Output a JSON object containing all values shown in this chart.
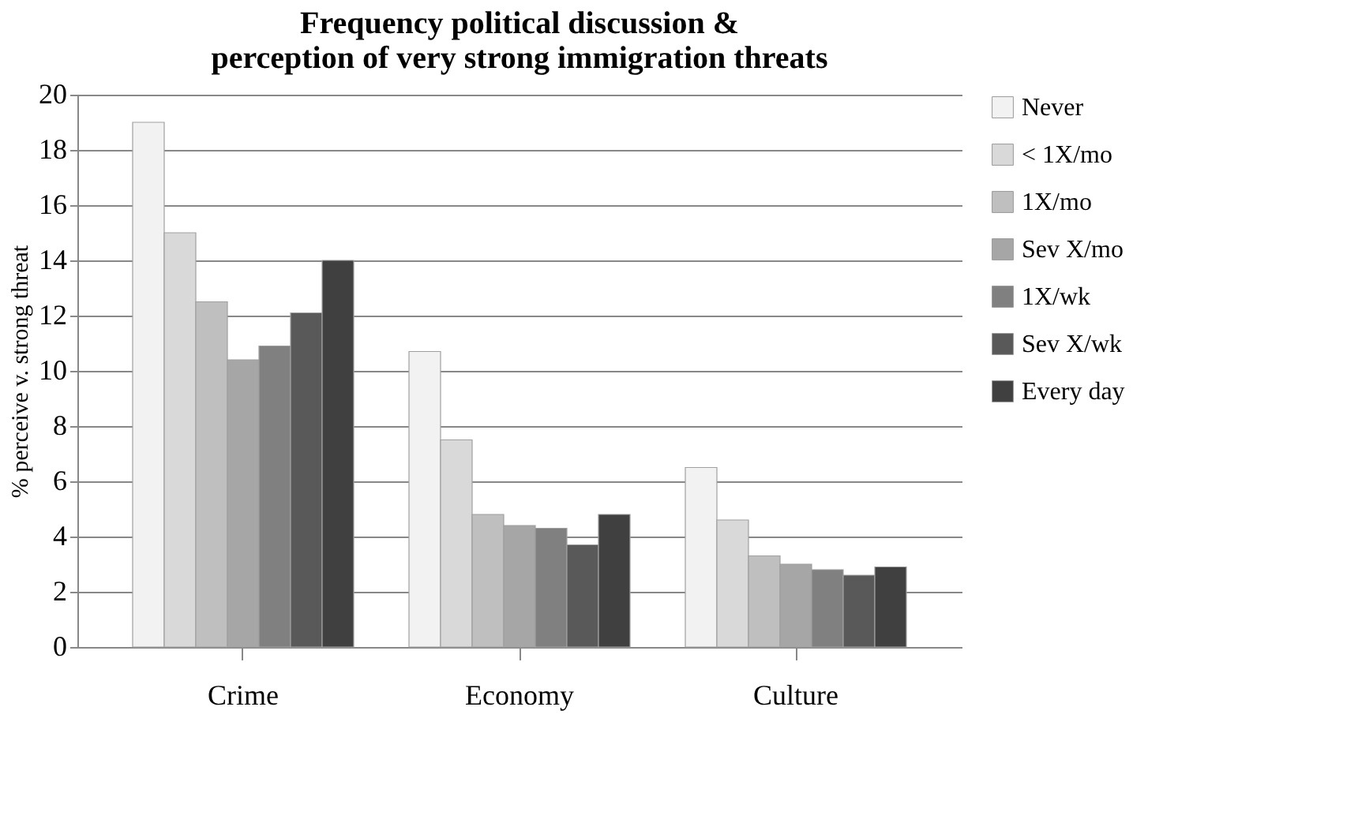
{
  "chart_data": {
    "type": "bar",
    "title": [
      "Frequency political discussion &",
      "perception of very strong immigration  threats"
    ],
    "ylabel": "% perceive v. strong threat",
    "categories": [
      "Crime",
      "Economy",
      "Culture"
    ],
    "series": [
      {
        "name": "Never",
        "color": "#f2f2f2",
        "values": [
          19,
          10.7,
          6.5
        ]
      },
      {
        "name": "< 1X/mo",
        "color": "#d9d9d9",
        "values": [
          15,
          7.5,
          4.6
        ]
      },
      {
        "name": "1X/mo",
        "color": "#bfbfbf",
        "values": [
          12.5,
          4.8,
          3.3
        ]
      },
      {
        "name": "Sev X/mo",
        "color": "#a6a6a6",
        "values": [
          10.4,
          4.4,
          3.0
        ]
      },
      {
        "name": "1X/wk",
        "color": "#808080",
        "values": [
          10.9,
          4.3,
          2.8
        ]
      },
      {
        "name": "Sev X/wk",
        "color": "#595959",
        "values": [
          12.1,
          3.7,
          2.6
        ]
      },
      {
        "name": "Every day",
        "color": "#404040",
        "values": [
          14,
          4.8,
          2.9
        ]
      }
    ],
    "ylim": [
      0,
      20
    ],
    "yticks": [
      0,
      2,
      4,
      6,
      8,
      10,
      12,
      14,
      16,
      18,
      20
    ],
    "grid": "y",
    "legend": "right"
  }
}
